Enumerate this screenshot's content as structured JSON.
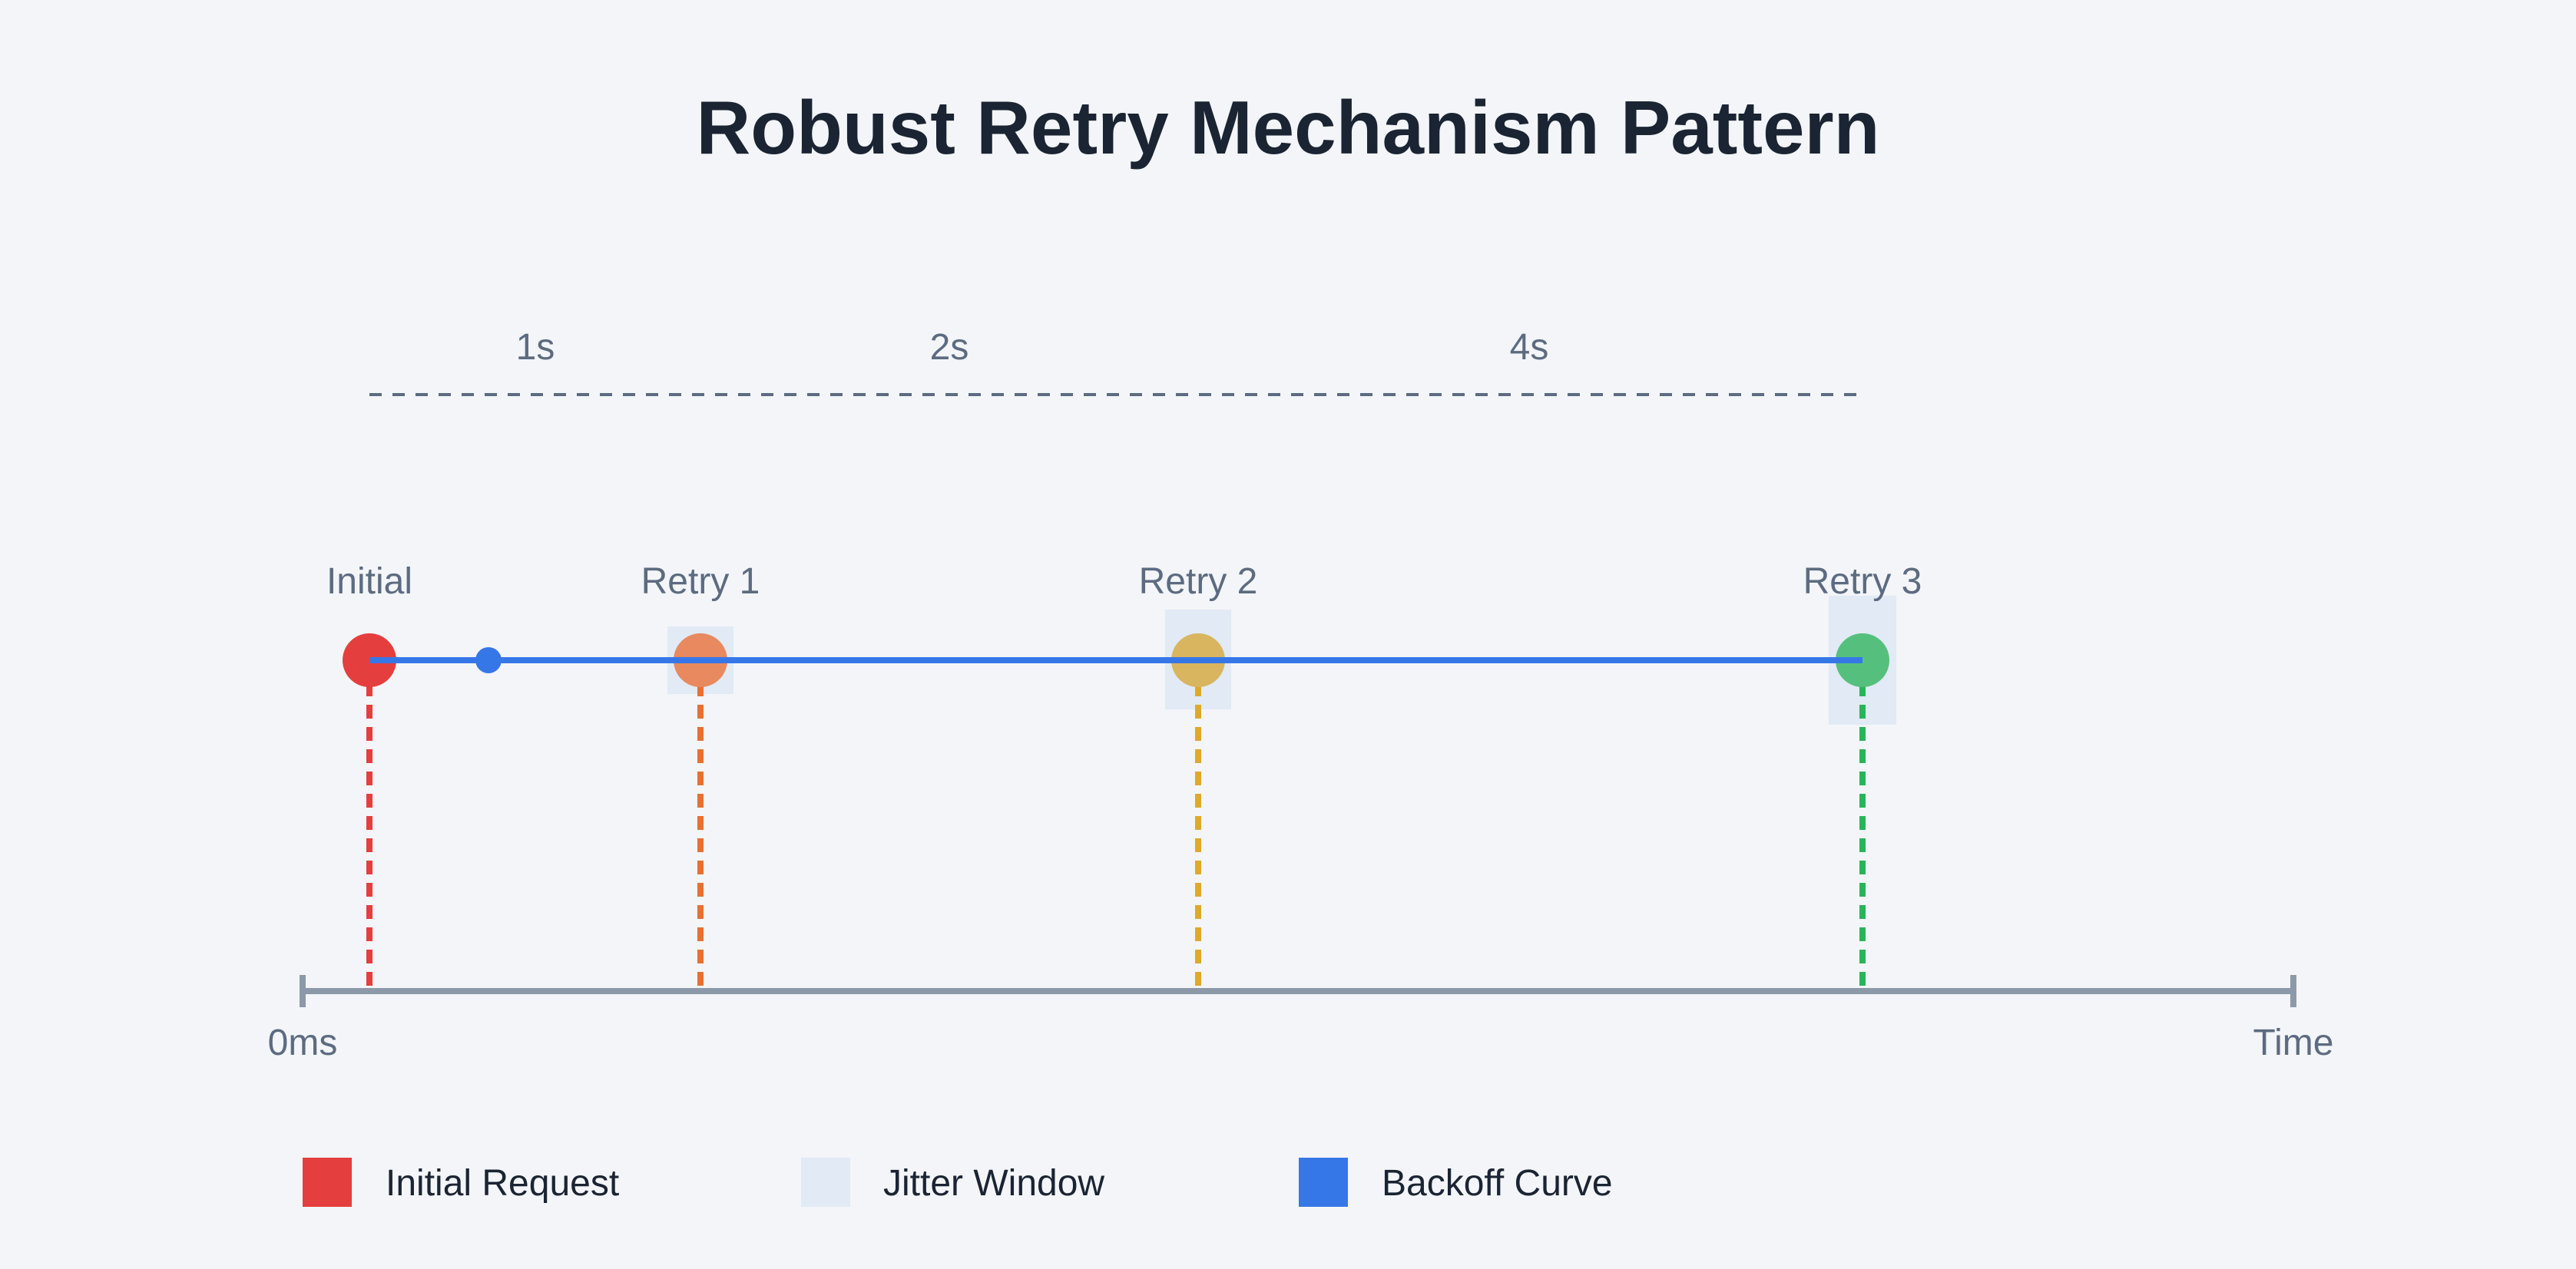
{
  "title": "Robust Retry Mechanism Pattern",
  "intervals": [
    {
      "label": "1s"
    },
    {
      "label": "2s"
    },
    {
      "label": "4s"
    }
  ],
  "events": [
    {
      "id": "initial",
      "label": "Initial",
      "color": "#e53e3e",
      "line_color": "#e53e3e",
      "jitter": false
    },
    {
      "id": "retry-1",
      "label": "Retry 1",
      "color": "#e8895f",
      "line_color": "#e8712f",
      "jitter": true
    },
    {
      "id": "retry-2",
      "label": "Retry 2",
      "color": "#d9b560",
      "line_color": "#e0a92a",
      "jitter": true
    },
    {
      "id": "retry-3",
      "label": "Retry 3",
      "color": "#55c07d",
      "line_color": "#2bb35a",
      "jitter": true
    }
  ],
  "axis": {
    "start_label": "0ms",
    "end_label": "Time"
  },
  "legend": [
    {
      "id": "initial-request",
      "label": "Initial Request",
      "color": "#e53e3e"
    },
    {
      "id": "jitter-window",
      "label": "Jitter Window",
      "color": "#e1eaf5"
    },
    {
      "id": "backoff-curve",
      "label": "Backoff Curve",
      "color": "#3677e8"
    }
  ],
  "colors": {
    "background": "#f3f5f8",
    "title": "#1a2433",
    "label": "#5c6b80",
    "axis": "#8c99a8",
    "dashed_guide": "#5c6b80",
    "backoff": "#3677e8",
    "jitter": "#e1eaf5"
  }
}
